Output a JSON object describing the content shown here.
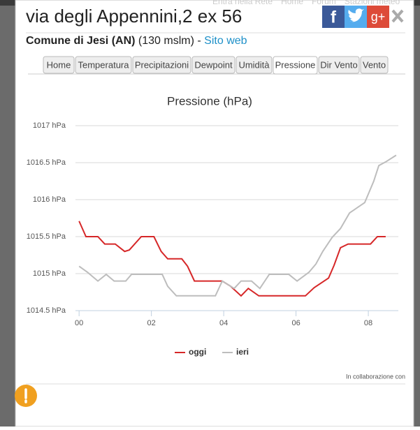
{
  "background_nav": [
    "Entra nella Rete",
    "Home",
    "Forum",
    "Stazioni meteo"
  ],
  "header": {
    "title": "via degli Appennini,2 ex 56",
    "share": [
      "f",
      "g+"
    ],
    "place": "Comune di Jesi (AN)",
    "altitude": "(130 mslm)",
    "separator": "-",
    "link": "Sito web"
  },
  "tabs": [
    "Home",
    "Temperatura",
    "Precipitazioni",
    "Dewpoint",
    "Umidità",
    "Pressione",
    "Dir Vento",
    "Vento"
  ],
  "active_tab": 5,
  "chart_data": {
    "type": "line",
    "title": "Pressione (hPa)",
    "xlim": [
      -0.1,
      8.83
    ],
    "xticks": [
      {
        "value": 0,
        "label": "00"
      },
      {
        "value": 2,
        "label": "02"
      },
      {
        "value": 4,
        "label": "04"
      },
      {
        "value": 6,
        "label": "06"
      },
      {
        "value": 8,
        "label": "08"
      }
    ],
    "ylim": [
      1014.5,
      1017
    ],
    "yticks": [
      {
        "value": 1014.5,
        "label": "1014.5 hPa"
      },
      {
        "value": 1015,
        "label": "1015 hPa"
      },
      {
        "value": 1015.5,
        "label": "1015.5 hPa"
      },
      {
        "value": 1016,
        "label": "1016 hPa"
      },
      {
        "value": 1016.5,
        "label": "1016.5 hPa"
      },
      {
        "value": 1017,
        "label": "1017 hPa"
      }
    ],
    "grid": true,
    "legend": "bottom",
    "series": [
      {
        "name": "oggi",
        "color": "#d62728",
        "x": [
          0,
          0.19,
          0.52,
          0.71,
          1.0,
          1.26,
          1.39,
          1.72,
          2.07,
          2.27,
          2.45,
          2.84,
          3.0,
          3.19,
          3.96,
          4.19,
          4.48,
          4.68,
          4.97,
          6.26,
          6.5,
          6.9,
          7.05,
          7.23,
          7.44,
          8.06,
          8.25,
          8.48
        ],
        "values": [
          1015.71,
          1015.5,
          1015.5,
          1015.4,
          1015.4,
          1015.3,
          1015.32,
          1015.5,
          1015.5,
          1015.3,
          1015.2,
          1015.2,
          1015.1,
          1014.9,
          1014.9,
          1014.83,
          1014.7,
          1014.8,
          1014.7,
          1014.7,
          1014.81,
          1014.94,
          1015.11,
          1015.35,
          1015.4,
          1015.4,
          1015.5,
          1015.5
        ]
      },
      {
        "name": "ieri",
        "color": "#bdbdbd",
        "x": [
          0,
          0.23,
          0.52,
          0.75,
          0.97,
          1.29,
          1.45,
          2.3,
          2.45,
          2.69,
          3.77,
          3.96,
          4.29,
          4.48,
          4.77,
          5.0,
          5.26,
          5.8,
          6.03,
          6.36,
          6.55,
          6.74,
          7.0,
          7.23,
          7.48,
          7.9,
          8.15,
          8.29,
          8.48,
          8.77
        ],
        "values": [
          1015.1,
          1015.02,
          1014.9,
          1014.99,
          1014.9,
          1014.9,
          1014.99,
          1014.99,
          1014.83,
          1014.7,
          1014.7,
          1014.9,
          1014.8,
          1014.9,
          1014.9,
          1014.8,
          1014.99,
          1014.99,
          1014.9,
          1015.02,
          1015.13,
          1015.3,
          1015.49,
          1015.61,
          1015.82,
          1015.96,
          1016.25,
          1016.46,
          1016.51,
          1016.6
        ]
      }
    ],
    "credit": "In collaborazione con"
  }
}
